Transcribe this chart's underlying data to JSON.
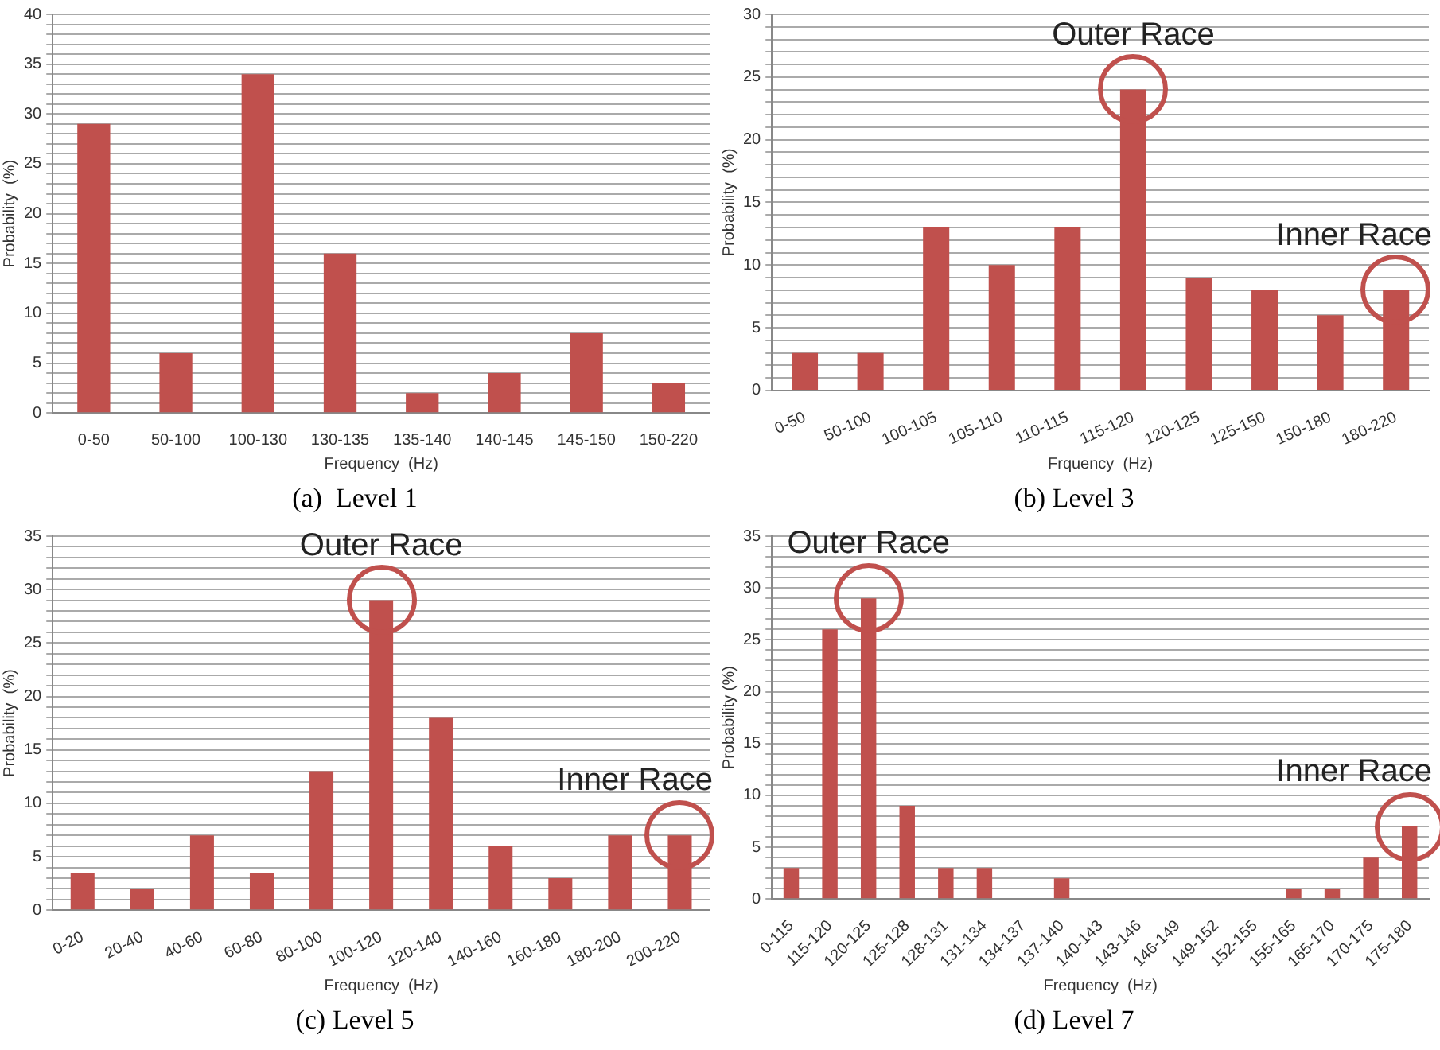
{
  "chart_data": [
    {
      "type": "bar",
      "title": "(a)  Level 1",
      "xlabel": "Frequency  (Hz)",
      "ylabel": "Probability  (%)",
      "categories": [
        "0-50",
        "50-100",
        "100-130",
        "130-135",
        "135-140",
        "140-145",
        "145-150",
        "150-220"
      ],
      "values": [
        29,
        6,
        34,
        16,
        2,
        4,
        8,
        3
      ],
      "color": "#c0504d",
      "ylim": [
        0,
        40
      ],
      "yticks": [
        0,
        {
          "value": 1,
          "label": null
        },
        {
          "value": 2,
          "label": null
        },
        {
          "value": 3,
          "label": null
        },
        {
          "value": 4,
          "label": null
        },
        5,
        {
          "value": 6,
          "label": null
        },
        {
          "value": 7,
          "label": null
        },
        {
          "value": 8,
          "label": null
        },
        {
          "value": 9,
          "label": null
        },
        10,
        {
          "value": 11,
          "label": null
        },
        {
          "value": 12,
          "label": null
        },
        {
          "value": 13,
          "label": null
        },
        {
          "value": 14,
          "label": null
        },
        15,
        {
          "value": 16,
          "label": null
        },
        {
          "value": 17,
          "label": null
        },
        {
          "value": 18,
          "label": null
        },
        {
          "value": 19,
          "label": null
        },
        20,
        {
          "value": 21,
          "label": null
        },
        {
          "value": 22,
          "label": null
        },
        {
          "value": 23,
          "label": null
        },
        {
          "value": 24,
          "label": null
        },
        25,
        {
          "value": 26,
          "label": null
        },
        {
          "value": 27,
          "label": null
        },
        {
          "value": 28,
          "label": null
        },
        {
          "value": 29,
          "label": null
        },
        30,
        {
          "value": 31,
          "label": null
        },
        {
          "value": 32,
          "label": null
        },
        {
          "value": 33,
          "label": null
        },
        {
          "value": 34,
          "label": null
        },
        35,
        {
          "value": 36,
          "label": null
        },
        {
          "value": 37,
          "label": null
        },
        {
          "value": 38,
          "label": null
        },
        {
          "value": 39,
          "label": null
        },
        40
      ],
      "grid": "y"
    },
    {
      "type": "bar",
      "title": "(b) Level 3",
      "xlabel": "Frquency  (Hz)",
      "ylabel": "Probability  (%)",
      "categories": [
        "0-50",
        "50-100",
        "100-105",
        "105-110",
        "110-115",
        "115-120",
        "120-125",
        "125-150",
        "150-180",
        "180-220"
      ],
      "values": [
        3,
        3,
        13,
        10,
        13,
        24,
        9,
        8,
        6,
        8
      ],
      "color": "#c0504d",
      "ylim": [
        0,
        30
      ],
      "yticks": [
        0,
        {
          "value": 1,
          "label": null
        },
        {
          "value": 2,
          "label": null
        },
        {
          "value": 3,
          "label": null
        },
        {
          "value": 4,
          "label": null
        },
        5,
        {
          "value": 6,
          "label": null
        },
        {
          "value": 7,
          "label": null
        },
        {
          "value": 8,
          "label": null
        },
        {
          "value": 9,
          "label": null
        },
        10,
        {
          "value": 11,
          "label": null
        },
        {
          "value": 12,
          "label": null
        },
        {
          "value": 13,
          "label": null
        },
        {
          "value": 14,
          "label": null
        },
        15,
        {
          "value": 16,
          "label": null
        },
        {
          "value": 17,
          "label": null
        },
        {
          "value": 18,
          "label": null
        },
        {
          "value": 19,
          "label": null
        },
        20,
        {
          "value": 21,
          "label": null
        },
        {
          "value": 22,
          "label": null
        },
        {
          "value": 23,
          "label": null
        },
        {
          "value": 24,
          "label": null
        },
        25,
        {
          "value": 26,
          "label": null
        },
        {
          "value": 27,
          "label": null
        },
        {
          "value": 28,
          "label": null
        },
        {
          "value": 29,
          "label": null
        },
        30
      ],
      "grid": "y",
      "annotations": [
        {
          "text": "Outer Race",
          "x": "115-120",
          "y": 24
        },
        {
          "text": "Inner Race",
          "x": "180-220",
          "y": 8
        }
      ]
    },
    {
      "type": "bar",
      "title": "(c) Level 5",
      "xlabel": "Frequency  (Hz)",
      "ylabel": "Probability  (%)",
      "categories": [
        "0-20",
        "20-40",
        "40-60",
        "60-80",
        "80-100",
        "100-120",
        "120-140",
        "140-160",
        "160-180",
        "180-200",
        "200-220"
      ],
      "values": [
        3.5,
        2,
        7,
        3.5,
        13,
        29,
        18,
        6,
        3,
        7,
        7
      ],
      "color": "#c0504d",
      "ylim": [
        0,
        35
      ],
      "yticks": [
        0,
        {
          "value": 1,
          "label": null
        },
        {
          "value": 2,
          "label": null
        },
        {
          "value": 3,
          "label": null
        },
        {
          "value": 4,
          "label": null
        },
        5,
        {
          "value": 6,
          "label": null
        },
        {
          "value": 7,
          "label": null
        },
        {
          "value": 8,
          "label": null
        },
        {
          "value": 9,
          "label": null
        },
        10,
        {
          "value": 11,
          "label": null
        },
        {
          "value": 12,
          "label": null
        },
        {
          "value": 13,
          "label": null
        },
        {
          "value": 14,
          "label": null
        },
        15,
        {
          "value": 16,
          "label": null
        },
        {
          "value": 17,
          "label": null
        },
        {
          "value": 18,
          "label": null
        },
        {
          "value": 19,
          "label": null
        },
        20,
        {
          "value": 21,
          "label": null
        },
        {
          "value": 22,
          "label": null
        },
        {
          "value": 23,
          "label": null
        },
        {
          "value": 24,
          "label": null
        },
        25,
        {
          "value": 26,
          "label": null
        },
        {
          "value": 27,
          "label": null
        },
        {
          "value": 28,
          "label": null
        },
        {
          "value": 29,
          "label": null
        },
        30,
        {
          "value": 31,
          "label": null
        },
        {
          "value": 32,
          "label": null
        },
        {
          "value": 33,
          "label": null
        },
        {
          "value": 34,
          "label": null
        },
        35
      ],
      "grid": "y",
      "annotations": [
        {
          "text": "Outer Race",
          "x": "100-120",
          "y": 29
        },
        {
          "text": "Inner Race",
          "x": "200-220",
          "y": 7
        }
      ]
    },
    {
      "type": "bar",
      "title": "(d) Level 7",
      "xlabel": "Frequency  (Hz)",
      "ylabel": "Probability (%)",
      "categories": [
        "0-115",
        "115-120",
        "120-125",
        "125-128",
        "128-131",
        "131-134",
        "134-137",
        "137-140",
        "140-143",
        "143-146",
        "146-149",
        "149-152",
        "152-155",
        "155-165",
        "165-170",
        "170-175",
        "175-180"
      ],
      "values": [
        3,
        26,
        29,
        9,
        3,
        3,
        0,
        2,
        0,
        0,
        0,
        0,
        0,
        1,
        1,
        4,
        7
      ],
      "color": "#c0504d",
      "ylim": [
        0,
        35
      ],
      "yticks": [
        0,
        {
          "value": 1,
          "label": null
        },
        {
          "value": 2,
          "label": null
        },
        {
          "value": 3,
          "label": null
        },
        {
          "value": 4,
          "label": null
        },
        5,
        {
          "value": 6,
          "label": null
        },
        {
          "value": 7,
          "label": null
        },
        {
          "value": 8,
          "label": null
        },
        {
          "value": 9,
          "label": null
        },
        10,
        {
          "value": 11,
          "label": null
        },
        {
          "value": 12,
          "label": null
        },
        {
          "value": 13,
          "label": null
        },
        {
          "value": 14,
          "label": null
        },
        15,
        {
          "value": 16,
          "label": null
        },
        {
          "value": 17,
          "label": null
        },
        {
          "value": 18,
          "label": null
        },
        {
          "value": 19,
          "label": null
        },
        20,
        {
          "value": 21,
          "label": null
        },
        {
          "value": 22,
          "label": null
        },
        {
          "value": 23,
          "label": null
        },
        {
          "value": 24,
          "label": null
        },
        25,
        {
          "value": 26,
          "label": null
        },
        {
          "value": 27,
          "label": null
        },
        {
          "value": 28,
          "label": null
        },
        {
          "value": 29,
          "label": null
        },
        30,
        {
          "value": 31,
          "label": null
        },
        {
          "value": 32,
          "label": null
        },
        {
          "value": 33,
          "label": null
        },
        {
          "value": 34,
          "label": null
        },
        35
      ],
      "grid": "y",
      "annotations": [
        {
          "text": "Outer Race",
          "x": "120-125",
          "y": 29
        },
        {
          "text": "Inner Race",
          "x": "175-180",
          "y": 7
        }
      ]
    }
  ]
}
